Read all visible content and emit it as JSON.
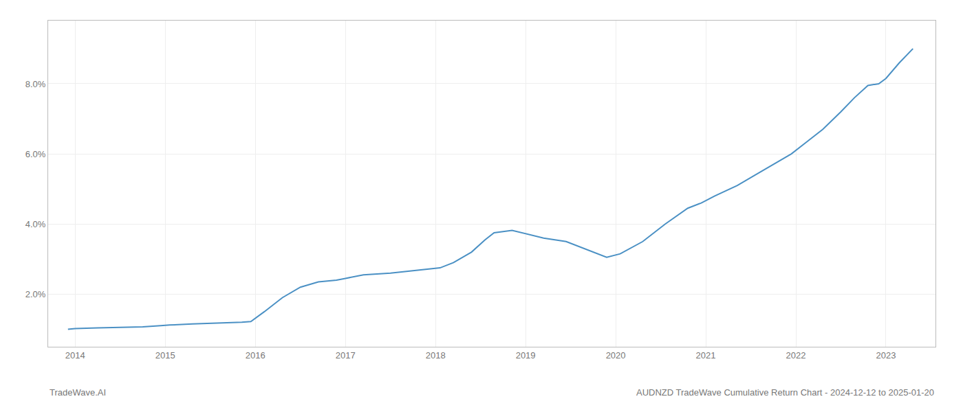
{
  "chart_data": {
    "type": "line",
    "title": "AUDNZD TradeWave Cumulative Return Chart - 2024-12-12 to 2025-01-20",
    "annotations": [
      "TradeWave.AI"
    ],
    "color": "#4a90c4",
    "grid": true,
    "x": [
      2013.92,
      2014.0,
      2014.25,
      2014.5,
      2014.75,
      2014.95,
      2015.05,
      2015.3,
      2015.6,
      2015.85,
      2015.95,
      2016.1,
      2016.3,
      2016.5,
      2016.7,
      2016.9,
      2017.0,
      2017.2,
      2017.5,
      2017.8,
      2017.95,
      2018.05,
      2018.2,
      2018.4,
      2018.55,
      2018.65,
      2018.85,
      2019.05,
      2019.2,
      2019.45,
      2019.55,
      2019.75,
      2019.9,
      2020.05,
      2020.3,
      2020.55,
      2020.8,
      2020.95,
      2021.1,
      2021.35,
      2021.55,
      2021.75,
      2021.95,
      2022.1,
      2022.3,
      2022.5,
      2022.65,
      2022.8,
      2022.92,
      2023.0,
      2023.15,
      2023.3
    ],
    "values": [
      1.0,
      1.02,
      1.04,
      1.05,
      1.07,
      1.1,
      1.12,
      1.15,
      1.17,
      1.2,
      1.22,
      1.5,
      1.9,
      2.2,
      2.35,
      2.4,
      2.45,
      2.55,
      2.6,
      2.68,
      2.72,
      2.75,
      2.9,
      3.2,
      3.55,
      3.75,
      3.82,
      3.7,
      3.6,
      3.5,
      3.4,
      3.2,
      3.05,
      3.15,
      3.5,
      4.0,
      4.45,
      4.6,
      4.8,
      5.1,
      5.4,
      5.7,
      6.0,
      6.3,
      6.7,
      7.2,
      7.6,
      7.95,
      8.0,
      8.15,
      8.6,
      9.0
    ],
    "xlim": [
      2013.7,
      2023.55
    ],
    "xticks": [
      2014,
      2015,
      2016,
      2017,
      2018,
      2019,
      2020,
      2021,
      2022,
      2023
    ],
    "ylim": [
      0.5,
      9.8
    ],
    "yticks": [
      {
        "value": 2.0,
        "label": "2.0%"
      },
      {
        "value": 4.0,
        "label": "4.0%"
      },
      {
        "value": 6.0,
        "label": "6.0%"
      },
      {
        "value": 8.0,
        "label": "8.0%"
      }
    ]
  }
}
